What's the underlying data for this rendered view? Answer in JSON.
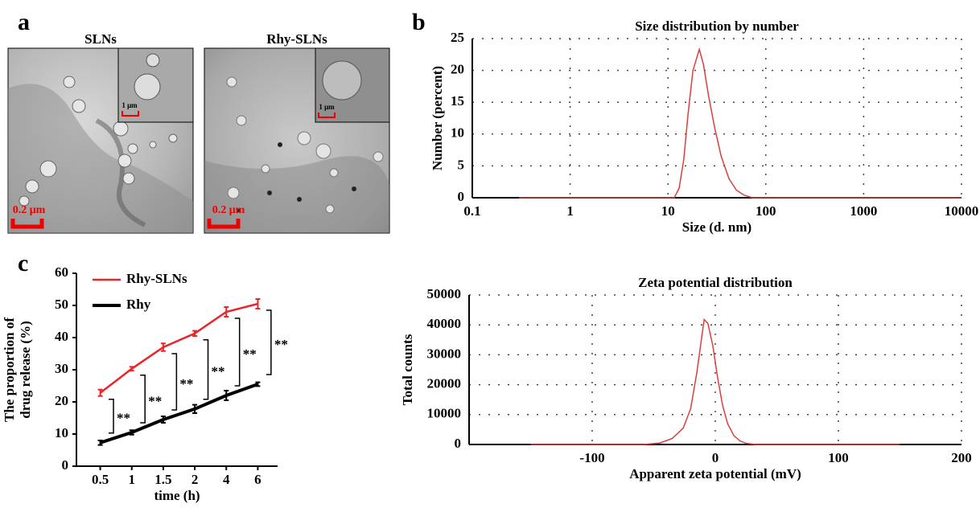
{
  "panel_labels": [
    "a",
    "b",
    "c"
  ],
  "images": [
    {
      "title": "SLNs",
      "scale_bar": "0.2 μm",
      "inset_scale_bar": "1 μm"
    },
    {
      "title": "Rhy-SLNs",
      "scale_bar": "0.2 μm",
      "inset_scale_bar": "1 μm"
    }
  ],
  "chart_data": [
    {
      "type": "line",
      "title": "Size distribution by number",
      "xlabel": "Size (d. nm)",
      "ylabel": "Number (percent)",
      "xscale": "log",
      "xlim": [
        0.1,
        10000
      ],
      "xticks": [
        0.1,
        1,
        10,
        100,
        1000,
        10000
      ],
      "ylim": [
        0,
        25
      ],
      "yticks": [
        0,
        5,
        10,
        15,
        20,
        25
      ],
      "grid": true,
      "color": "#d9403a",
      "x": [
        0.3,
        10,
        11.6,
        13,
        14.5,
        16,
        18,
        20.9,
        23,
        26,
        30,
        35,
        42,
        50,
        60,
        73,
        100,
        1000,
        10000
      ],
      "values": [
        0,
        0,
        0,
        1.5,
        6,
        13,
        20,
        23.3,
        21,
        16,
        11,
        6.5,
        3,
        1.2,
        0.4,
        0,
        0,
        0,
        0
      ]
    },
    {
      "type": "line",
      "title": "Zeta potential distribution",
      "xlabel": "Apparent zeta potential (mV)",
      "ylabel": "Total counts",
      "xlim": [
        -200,
        200
      ],
      "xticks": [
        -100,
        0,
        100,
        200
      ],
      "ylim": [
        0,
        50000
      ],
      "yticks": [
        0,
        10000,
        20000,
        30000,
        40000,
        50000
      ],
      "grid": true,
      "color": "#d9403a",
      "x": [
        -150,
        -58,
        -45,
        -35,
        -26,
        -20,
        -15,
        -11,
        -9,
        -6,
        -2,
        2,
        6,
        10,
        15,
        20,
        25,
        33,
        150
      ],
      "values": [
        0,
        0,
        500,
        2000,
        5500,
        12000,
        24000,
        36000,
        41800,
        40500,
        33000,
        22000,
        13000,
        7000,
        3000,
        1200,
        400,
        0,
        0
      ]
    },
    {
      "type": "errorline",
      "xlabel": "time (h)",
      "ylabel": [
        "The proportion of",
        "drug release (%)"
      ],
      "categories": [
        "0.5",
        "1",
        "1.5",
        "2",
        "4",
        "6"
      ],
      "ylim": [
        0,
        60
      ],
      "yticks": [
        0,
        10,
        20,
        30,
        40,
        50,
        60
      ],
      "legend": "upper left",
      "series": [
        {
          "name": "Rhy-SLNs",
          "color": "#e8262a",
          "values": [
            22.8,
            30.3,
            37,
            41.3,
            48,
            50.5
          ],
          "errors": [
            1,
            0.6,
            1.2,
            0.8,
            1.5,
            1.5
          ]
        },
        {
          "name": "Rhy",
          "color": "#000000",
          "values": [
            7.3,
            10.5,
            14.5,
            17.8,
            22,
            25.5
          ],
          "errors": [
            0.7,
            0.7,
            1,
            1.3,
            1.5,
            0.6
          ]
        }
      ],
      "annotations": [
        "**",
        "**",
        "**",
        "**",
        "**",
        "**"
      ]
    }
  ]
}
